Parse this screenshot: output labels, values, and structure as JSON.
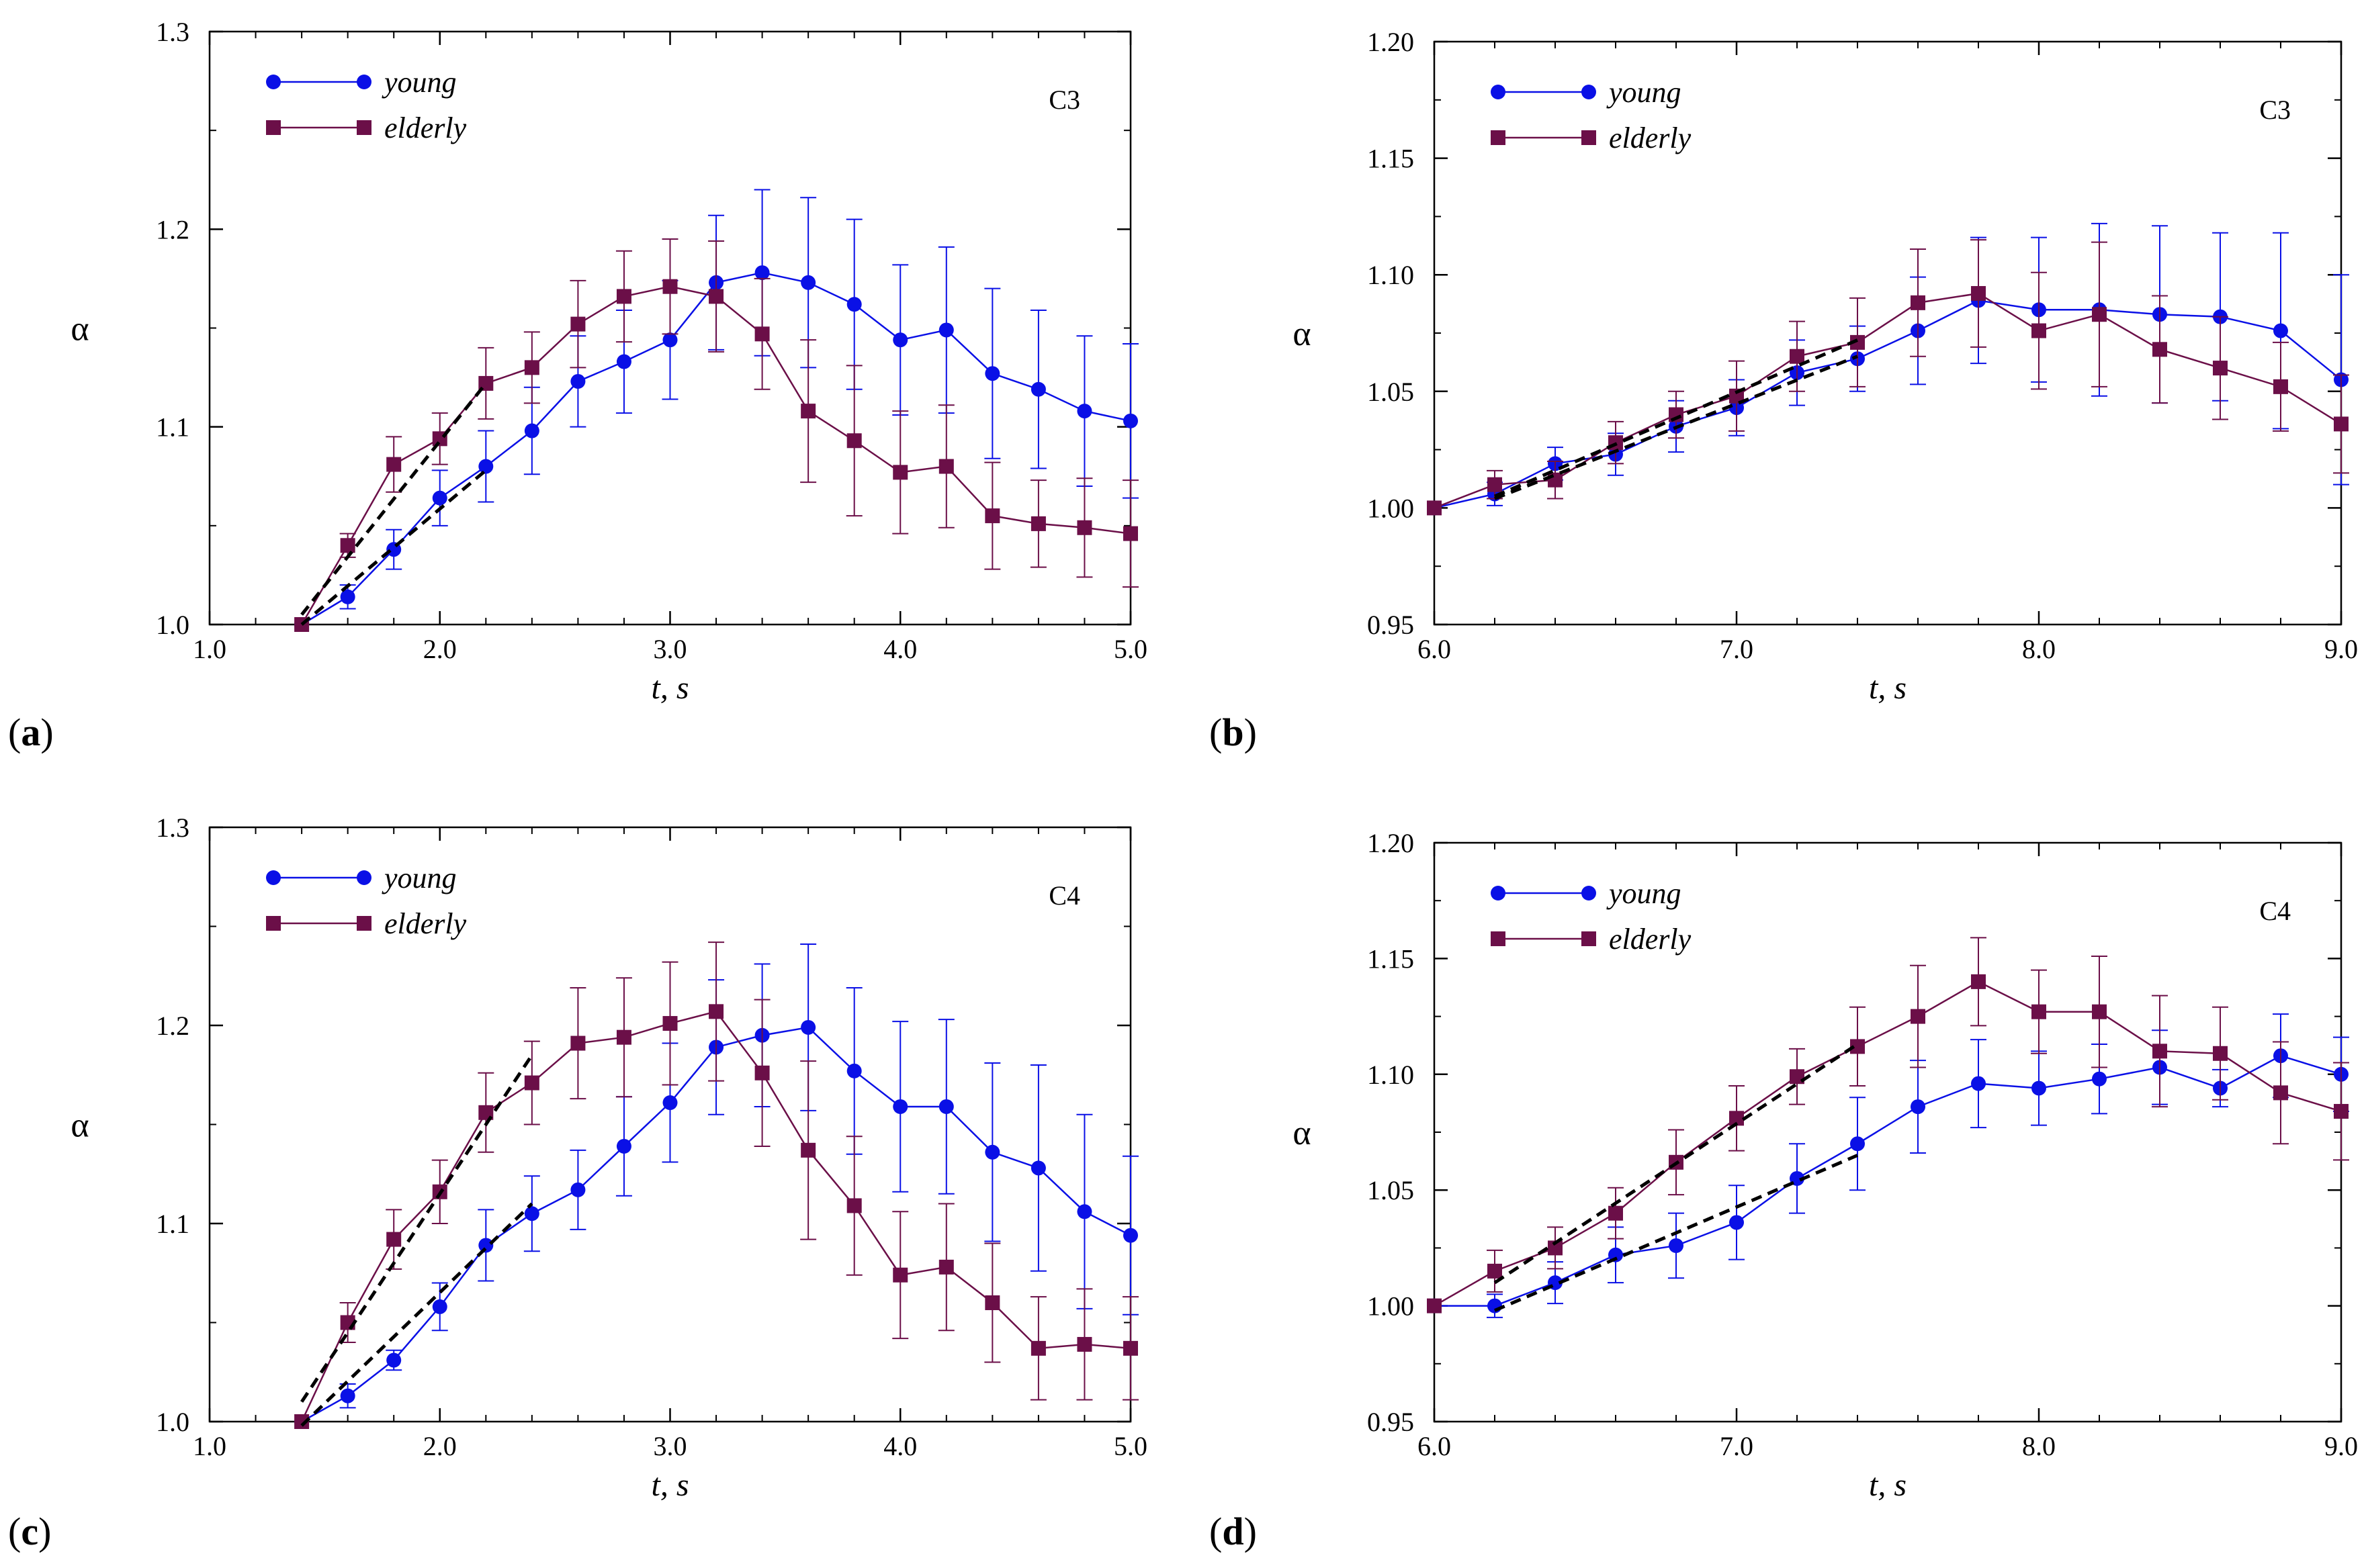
{
  "colors": {
    "young": "#0a10e6",
    "elderly": "#6b0f48",
    "fit": "#000000",
    "axis": "#000000"
  },
  "chart_data": [
    {
      "id": "a",
      "type": "line",
      "panel_label": "a",
      "channel": "C3",
      "xlabel": "t, s",
      "ylabel": "α",
      "xlim": [
        1.0,
        5.0
      ],
      "ylim": [
        1.0,
        1.3
      ],
      "xticks": [
        "1.0",
        "2.0",
        "3.0",
        "4.0",
        "5.0"
      ],
      "yticks": [
        "1.0",
        "1.1",
        "1.2",
        "1.3"
      ],
      "legend": [
        "young",
        "elderly"
      ],
      "legend_position": "top-left",
      "series": [
        {
          "name": "young",
          "marker": "circle",
          "x": [
            1.4,
            1.6,
            1.8,
            2.0,
            2.2,
            2.4,
            2.6,
            2.8,
            3.0,
            3.2,
            3.4,
            3.6,
            3.8,
            4.0,
            4.2,
            4.4,
            4.6,
            4.8,
            5.0
          ],
          "y": [
            1.0,
            1.014,
            1.038,
            1.064,
            1.08,
            1.098,
            1.123,
            1.133,
            1.144,
            1.173,
            1.178,
            1.173,
            1.162,
            1.144,
            1.149,
            1.127,
            1.119,
            1.108,
            1.103
          ],
          "err": [
            0,
            0.006,
            0.01,
            0.014,
            0.018,
            0.022,
            0.023,
            0.026,
            0.03,
            0.034,
            0.042,
            0.043,
            0.043,
            0.038,
            0.042,
            0.043,
            0.04,
            0.038,
            0.039
          ]
        },
        {
          "name": "elderly",
          "marker": "square",
          "x": [
            1.4,
            1.6,
            1.8,
            2.0,
            2.2,
            2.4,
            2.6,
            2.8,
            3.0,
            3.2,
            3.4,
            3.6,
            3.8,
            4.0,
            4.2,
            4.4,
            4.6,
            4.8,
            5.0
          ],
          "y": [
            1.0,
            1.04,
            1.081,
            1.094,
            1.122,
            1.13,
            1.152,
            1.166,
            1.171,
            1.166,
            1.147,
            1.108,
            1.093,
            1.077,
            1.08,
            1.055,
            1.051,
            1.049,
            1.046
          ],
          "err": [
            0,
            0.006,
            0.014,
            0.013,
            0.018,
            0.018,
            0.022,
            0.023,
            0.024,
            0.028,
            0.028,
            0.036,
            0.038,
            0.031,
            0.031,
            0.027,
            0.022,
            0.025,
            0.027
          ]
        }
      ],
      "fits": [
        {
          "x": [
            1.4,
            2.2
          ],
          "y": [
            1.005,
            1.122
          ]
        },
        {
          "x": [
            1.4,
            2.2
          ],
          "y": [
            1.0,
            1.078
          ]
        }
      ]
    },
    {
      "id": "b",
      "type": "line",
      "panel_label": "b",
      "channel": "C3",
      "xlabel": "t, s",
      "ylabel": "α",
      "xlim": [
        6.0,
        9.0
      ],
      "ylim": [
        0.95,
        1.2
      ],
      "xticks": [
        "6.0",
        "7.0",
        "8.0",
        "9.0"
      ],
      "yticks": [
        "0.95",
        "1.00",
        "1.05",
        "1.10",
        "1.15",
        "1.20"
      ],
      "legend": [
        "young",
        "elderly"
      ],
      "legend_position": "top-left",
      "series": [
        {
          "name": "young",
          "marker": "circle",
          "x": [
            6.0,
            6.2,
            6.4,
            6.6,
            6.8,
            7.0,
            7.2,
            7.4,
            7.6,
            7.8,
            8.0,
            8.2,
            8.4,
            8.6,
            8.8,
            9.0
          ],
          "y": [
            1.0,
            1.006,
            1.019,
            1.023,
            1.035,
            1.043,
            1.058,
            1.064,
            1.076,
            1.089,
            1.085,
            1.085,
            1.083,
            1.082,
            1.076,
            1.055
          ],
          "err": [
            0,
            0.005,
            0.007,
            0.009,
            0.011,
            0.012,
            0.014,
            0.014,
            0.023,
            0.027,
            0.031,
            0.037,
            0.038,
            0.036,
            0.042,
            0.045
          ]
        },
        {
          "name": "elderly",
          "marker": "square",
          "x": [
            6.0,
            6.2,
            6.4,
            6.6,
            6.8,
            7.0,
            7.2,
            7.4,
            7.6,
            7.8,
            8.0,
            8.2,
            8.4,
            8.6,
            8.8,
            9.0
          ],
          "y": [
            1.0,
            1.01,
            1.012,
            1.028,
            1.04,
            1.048,
            1.065,
            1.071,
            1.088,
            1.092,
            1.076,
            1.083,
            1.068,
            1.06,
            1.052,
            1.036
          ],
          "err": [
            0,
            0.006,
            0.008,
            0.009,
            0.01,
            0.015,
            0.015,
            0.019,
            0.023,
            0.023,
            0.025,
            0.031,
            0.023,
            0.022,
            0.019,
            0.021
          ]
        }
      ],
      "fits": [
        {
          "x": [
            6.2,
            7.4
          ],
          "y": [
            1.005,
            1.072
          ]
        },
        {
          "x": [
            6.2,
            7.4
          ],
          "y": [
            1.004,
            1.065
          ]
        }
      ]
    },
    {
      "id": "c",
      "type": "line",
      "panel_label": "c",
      "channel": "C4",
      "xlabel": "t, s",
      "ylabel": "α",
      "xlim": [
        1.0,
        5.0
      ],
      "ylim": [
        1.0,
        1.3
      ],
      "xticks": [
        "1.0",
        "2.0",
        "3.0",
        "4.0",
        "5.0"
      ],
      "yticks": [
        "1.0",
        "1.1",
        "1.2",
        "1.3"
      ],
      "legend": [
        "young",
        "elderly"
      ],
      "legend_position": "top-left",
      "series": [
        {
          "name": "young",
          "marker": "circle",
          "x": [
            1.4,
            1.6,
            1.8,
            2.0,
            2.2,
            2.4,
            2.6,
            2.8,
            3.0,
            3.2,
            3.4,
            3.6,
            3.8,
            4.0,
            4.2,
            4.4,
            4.6,
            4.8,
            5.0
          ],
          "y": [
            1.0,
            1.013,
            1.031,
            1.058,
            1.089,
            1.105,
            1.117,
            1.139,
            1.161,
            1.189,
            1.195,
            1.199,
            1.177,
            1.159,
            1.159,
            1.136,
            1.128,
            1.106,
            1.094
          ],
          "err": [
            0,
            0.006,
            0.005,
            0.012,
            0.018,
            0.019,
            0.02,
            0.025,
            0.03,
            0.034,
            0.036,
            0.042,
            0.042,
            0.043,
            0.044,
            0.045,
            0.052,
            0.049,
            0.04
          ]
        },
        {
          "name": "elderly",
          "marker": "square",
          "x": [
            1.4,
            1.6,
            1.8,
            2.0,
            2.2,
            2.4,
            2.6,
            2.8,
            3.0,
            3.2,
            3.4,
            3.6,
            3.8,
            4.0,
            4.2,
            4.4,
            4.6,
            4.8,
            5.0
          ],
          "y": [
            1.0,
            1.05,
            1.092,
            1.116,
            1.156,
            1.171,
            1.191,
            1.194,
            1.201,
            1.207,
            1.176,
            1.137,
            1.109,
            1.074,
            1.078,
            1.06,
            1.037,
            1.039,
            1.037
          ],
          "err": [
            0,
            0.01,
            0.015,
            0.016,
            0.02,
            0.021,
            0.028,
            0.03,
            0.031,
            0.035,
            0.037,
            0.045,
            0.035,
            0.032,
            0.032,
            0.03,
            0.026,
            0.028,
            0.026
          ]
        }
      ],
      "fits": [
        {
          "x": [
            1.4,
            2.4
          ],
          "y": [
            1.01,
            1.185
          ]
        },
        {
          "x": [
            1.4,
            2.4
          ],
          "y": [
            0.998,
            1.11
          ]
        }
      ]
    },
    {
      "id": "d",
      "type": "line",
      "panel_label": "d",
      "channel": "C4",
      "xlabel": "t, s",
      "ylabel": "α",
      "xlim": [
        6.0,
        9.0
      ],
      "ylim": [
        0.95,
        1.2
      ],
      "xticks": [
        "6.0",
        "7.0",
        "8.0",
        "9.0"
      ],
      "yticks": [
        "0.95",
        "1.00",
        "1.05",
        "1.10",
        "1.15",
        "1.20"
      ],
      "legend": [
        "young",
        "elderly"
      ],
      "legend_position": "top-left",
      "series": [
        {
          "name": "young",
          "marker": "circle",
          "x": [
            6.0,
            6.2,
            6.4,
            6.6,
            6.8,
            7.0,
            7.2,
            7.4,
            7.6,
            7.8,
            8.0,
            8.2,
            8.4,
            8.6,
            8.8,
            9.0
          ],
          "y": [
            1.0,
            1.0,
            1.01,
            1.022,
            1.026,
            1.036,
            1.055,
            1.07,
            1.086,
            1.096,
            1.094,
            1.098,
            1.103,
            1.094,
            1.108,
            1.1
          ],
          "err": [
            0,
            0.005,
            0.009,
            0.012,
            0.014,
            0.016,
            0.015,
            0.02,
            0.02,
            0.019,
            0.016,
            0.015,
            0.016,
            0.008,
            0.018,
            0.016
          ]
        },
        {
          "name": "elderly",
          "marker": "square",
          "x": [
            6.0,
            6.2,
            6.4,
            6.6,
            6.8,
            7.0,
            7.2,
            7.4,
            7.6,
            7.8,
            8.0,
            8.2,
            8.4,
            8.6,
            8.8,
            9.0
          ],
          "y": [
            1.0,
            1.015,
            1.025,
            1.04,
            1.062,
            1.081,
            1.099,
            1.112,
            1.125,
            1.14,
            1.127,
            1.127,
            1.11,
            1.109,
            1.092,
            1.084
          ],
          "err": [
            0,
            0.009,
            0.009,
            0.011,
            0.014,
            0.014,
            0.012,
            0.017,
            0.022,
            0.019,
            0.018,
            0.024,
            0.024,
            0.02,
            0.022,
            0.021
          ]
        }
      ],
      "fits": [
        {
          "x": [
            6.2,
            7.4
          ],
          "y": [
            1.01,
            1.113
          ]
        },
        {
          "x": [
            6.2,
            7.4
          ],
          "y": [
            0.998,
            1.065
          ]
        }
      ]
    }
  ]
}
